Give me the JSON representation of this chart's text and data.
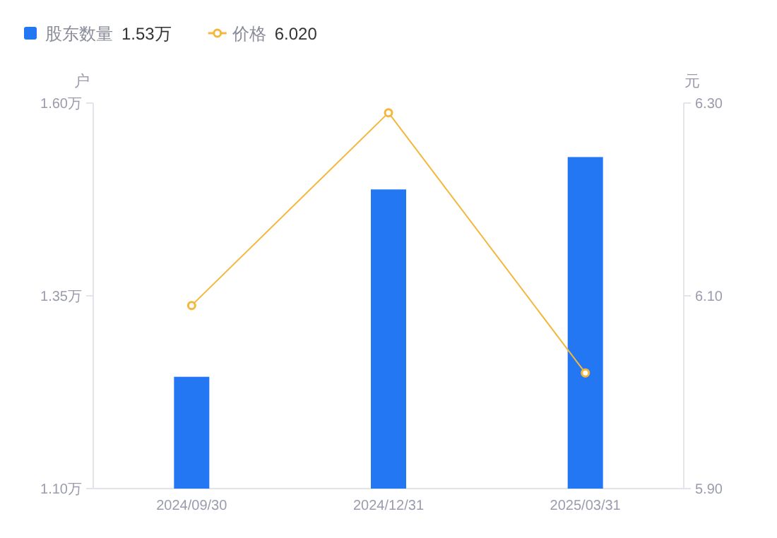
{
  "chart_data": {
    "type": "bar",
    "categories": [
      "2024/09/30",
      "2024/12/31",
      "2025/03/31"
    ],
    "series": [
      {
        "name": "股东数量",
        "color": "#2477f2",
        "values": [
          1.245,
          1.488,
          1.53
        ]
      },
      {
        "name": "价格",
        "type": "line",
        "axis": "y2",
        "color": "#f5b73b",
        "values": [
          6.09,
          6.29,
          6.02
        ]
      }
    ],
    "ylabel": "户",
    "y2label": "元",
    "ylim": [
      1.1,
      1.6
    ],
    "yticks": [
      {
        "value": 1.1,
        "label": "1.10万"
      },
      {
        "value": 1.35,
        "label": "1.35万"
      },
      {
        "value": 1.6,
        "label": "1.60万"
      }
    ],
    "y2lim": [
      5.9,
      6.3
    ],
    "y2ticks": [
      {
        "value": 5.9,
        "label": "5.90"
      },
      {
        "value": 6.1,
        "label": "6.10"
      },
      {
        "value": 6.3,
        "label": "6.30"
      }
    ],
    "annotations": [
      "1.53万",
      "6.020"
    ],
    "legend": "top left",
    "grid": false,
    "marker": "circle",
    "line_style": "solid"
  }
}
